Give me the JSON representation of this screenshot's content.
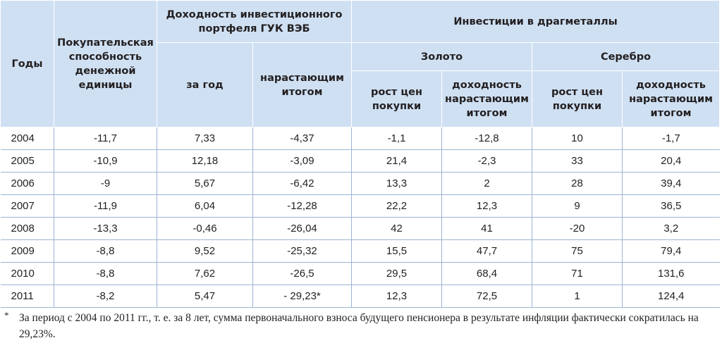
{
  "headers": {
    "years": "Годы",
    "purchasing_power": "Покупательская способность денежной единицы",
    "portfolio_group": "Доходность инвестиционного портфеля ГУК ВЭБ",
    "portfolio_year": "за год",
    "portfolio_cumulative": "нарастающим итогом",
    "metals_group": "Инвестиции в драгметаллы",
    "gold": "Золото",
    "silver": "Серебро",
    "gold_price_growth": "рост цен покупки",
    "gold_cumulative": "доходность нарастающим итогом",
    "silver_price_growth": "рост цен покупки",
    "silver_cumulative": "доходность нарастающим итогом"
  },
  "rows": [
    {
      "year": "2004",
      "pp": "-11,7",
      "py": "7,33",
      "pc": "-4,37",
      "gg": "-1,1",
      "gc": "-12,8",
      "sg": "10",
      "sc": "-1,7"
    },
    {
      "year": "2005",
      "pp": "-10,9",
      "py": "12,18",
      "pc": "-3,09",
      "gg": "21,4",
      "gc": "-2,3",
      "sg": "33",
      "sc": "20,4"
    },
    {
      "year": "2006",
      "pp": "-9",
      "py": "5,67",
      "pc": "-6,42",
      "gg": "13,3",
      "gc": "2",
      "sg": "28",
      "sc": "39,4"
    },
    {
      "year": "2007",
      "pp": "-11,9",
      "py": "6,04",
      "pc": "-12,28",
      "gg": "22,2",
      "gc": "12,3",
      "sg": "9",
      "sc": "36,5"
    },
    {
      "year": "2008",
      "pp": "-13,3",
      "py": "-0,46",
      "pc": "-26,04",
      "gg": "42",
      "gc": "41",
      "sg": "-20",
      "sc": "3,2"
    },
    {
      "year": "2009",
      "pp": "-8,8",
      "py": "9,52",
      "pc": "-25,32",
      "gg": "15,5",
      "gc": "47,7",
      "sg": "75",
      "sc": "79,4"
    },
    {
      "year": "2010",
      "pp": "-8,8",
      "py": "7,62",
      "pc": "-26,5",
      "gg": "29,5",
      "gc": "68,4",
      "sg": "71",
      "sc": "131,6"
    },
    {
      "year": "2011",
      "pp": "-8,2",
      "py": "5,47",
      "pc": "- 29,23*",
      "gg": "12,3",
      "gc": "72,5",
      "sg": "1",
      "sc": "124,4"
    }
  ],
  "footnote": {
    "mark": "*",
    "text": "За период с 2004 по 2011 гг., т. е. за 8 лет, сумма первоначального взноса будущего пенсионера в результате инфляции фактически сократилась на 29,23%."
  }
}
